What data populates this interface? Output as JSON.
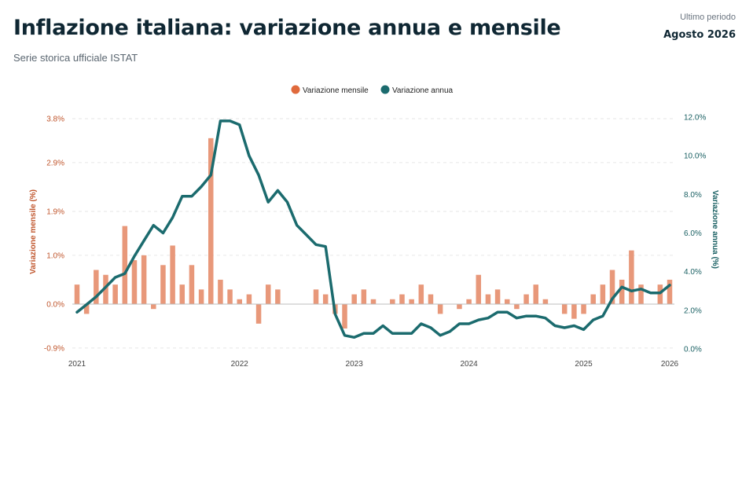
{
  "header": {
    "title": "Inflazione italiana: variazione annua e mensile",
    "subtitle": "Serie storica ufficiale ISTAT",
    "period_label": "Ultimo periodo",
    "period_value": "Agosto 2026"
  },
  "chart_data": {
    "type": "bar+line",
    "series": [
      {
        "name": "Variazione mensile",
        "type": "bar",
        "axis": "left",
        "color": "#e8987a",
        "values": [
          0.4,
          -0.2,
          0.7,
          0.6,
          0.4,
          1.6,
          0.9,
          1.0,
          -0.1,
          0.8,
          1.2,
          0.4,
          0.8,
          0.3,
          3.4,
          0.5,
          0.3,
          0.1,
          0.2,
          -0.4,
          0.4,
          0.3,
          0.0,
          0.0,
          0.0,
          0.3,
          0.2,
          -0.2,
          -0.5,
          0.2,
          0.3,
          0.1,
          0.0,
          0.1,
          0.2,
          0.1,
          0.4,
          0.2,
          -0.2,
          0.0,
          -0.1,
          0.1,
          0.6,
          0.2,
          0.3,
          0.1,
          -0.1,
          0.2,
          0.4,
          0.1,
          0.0,
          -0.2,
          -0.3,
          -0.2,
          0.2,
          0.4,
          0.7,
          0.5,
          1.1,
          0.4,
          0.0,
          0.4,
          0.5
        ]
      },
      {
        "name": "Variazione annua",
        "type": "line",
        "axis": "right",
        "color": "#1b6b6e",
        "values": [
          1.9,
          2.3,
          2.7,
          3.2,
          3.7,
          3.9,
          4.8,
          5.6,
          6.4,
          6.0,
          6.8,
          7.9,
          7.9,
          8.4,
          9.0,
          11.8,
          11.8,
          11.6,
          10.0,
          9.0,
          7.6,
          8.2,
          7.6,
          6.4,
          5.9,
          5.4,
          5.3,
          1.8,
          0.7,
          0.6,
          0.8,
          0.8,
          1.2,
          0.8,
          0.8,
          0.8,
          1.3,
          1.1,
          0.7,
          0.9,
          1.3,
          1.3,
          1.5,
          1.6,
          1.9,
          1.9,
          1.6,
          1.7,
          1.7,
          1.6,
          1.2,
          1.1,
          1.2,
          1.0,
          1.5,
          1.7,
          2.6,
          3.2,
          3.0,
          3.1,
          2.9,
          2.9,
          3.3
        ]
      }
    ],
    "x_labels": [
      "2021",
      "2022",
      "2023",
      "2024",
      "2025",
      "2026"
    ],
    "y_left": {
      "label": "Variazione mensile (%)",
      "ticks": [
        "3.8%",
        "2.9%",
        "1.9%",
        "1.0%",
        "0.0%",
        "-0.9%"
      ],
      "range": [
        -0.9,
        3.8
      ]
    },
    "y_right": {
      "label": "Variazione annua (%)",
      "ticks": [
        "12.0%",
        "10.0%",
        "8.0%",
        "6.0%",
        "4.0%",
        "2.0%",
        "0.0%"
      ],
      "range": [
        0,
        12
      ]
    },
    "legend": {
      "position": "top-center"
    },
    "grid": true,
    "colors": {
      "monthly": "#e8987a",
      "monthly_dot": "#e06a3c",
      "annual": "#1b6b6e"
    }
  }
}
